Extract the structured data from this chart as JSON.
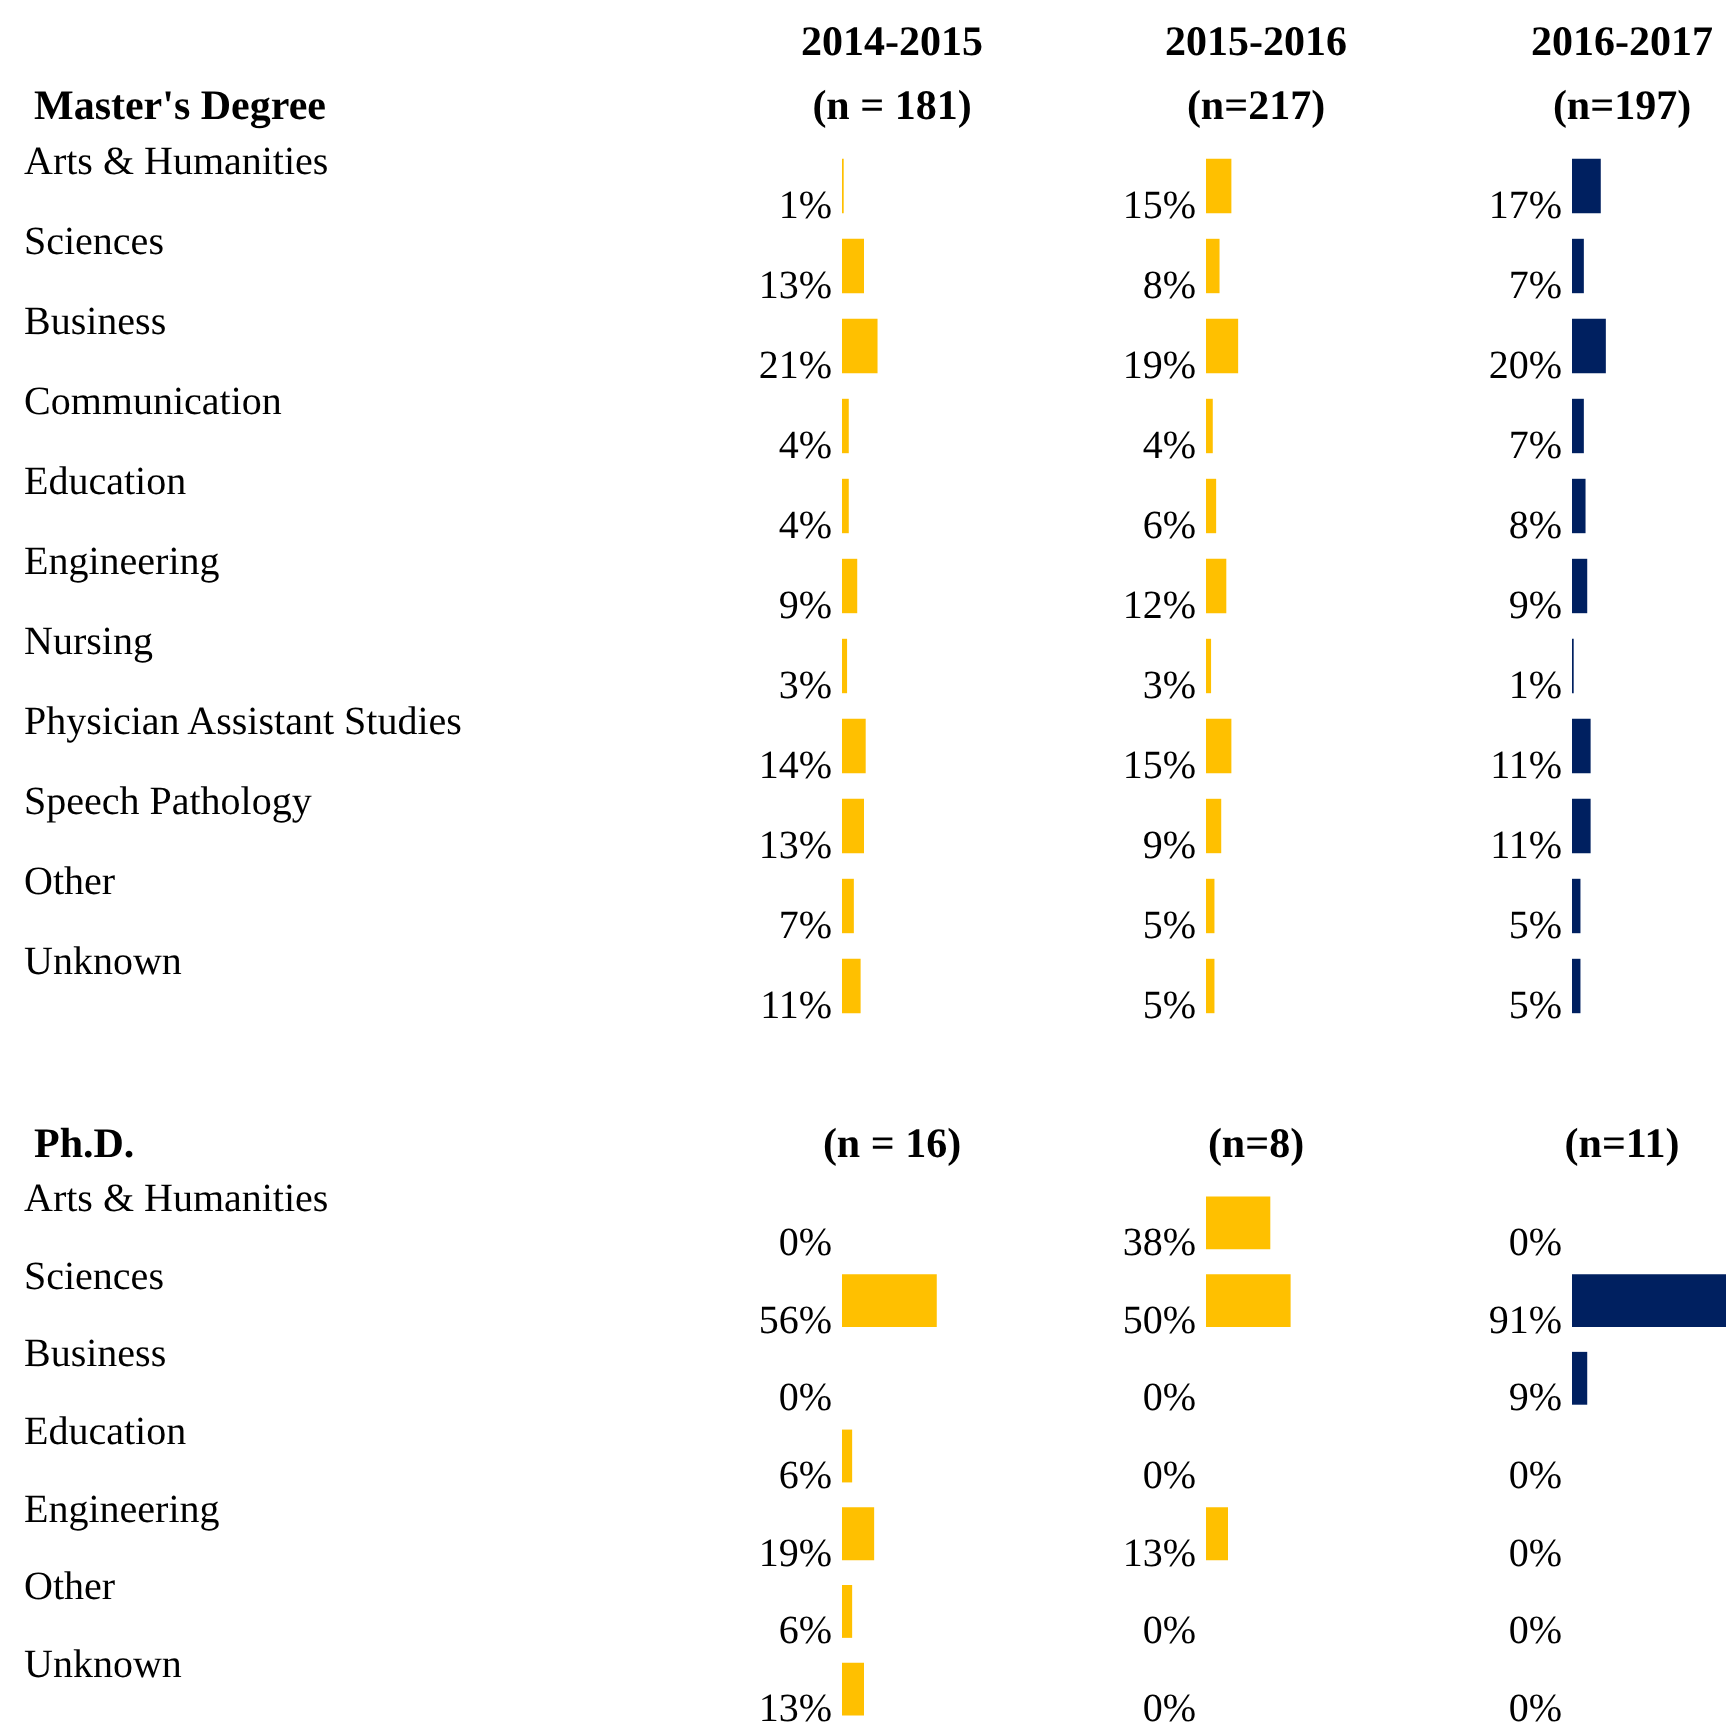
{
  "chart_data": [
    {
      "type": "bar",
      "orientation": "horizontal",
      "title": "2014-2015",
      "subtitle": "(n = 181)",
      "ylabel": "Master's Degree",
      "categories": [
        "Arts & Humanities",
        "Sciences",
        "Business",
        "Communication",
        "Education",
        "Engineering",
        "Nursing",
        "Physician Assistant Studies",
        "Speech Pathology",
        "Other",
        "Unknown"
      ],
      "values": [
        1,
        13,
        21,
        4,
        4,
        9,
        3,
        14,
        13,
        7,
        11
      ],
      "value_labels": [
        "1%",
        "13%",
        "21%",
        "4%",
        "4%",
        "9%",
        "3%",
        "14%",
        "13%",
        "7%",
        "11%"
      ],
      "color": "#ffc000",
      "tick_labels": "y"
    },
    {
      "type": "bar",
      "orientation": "horizontal",
      "title": "2015-2016",
      "subtitle": "(n=217)",
      "categories": [
        null,
        null,
        null,
        null,
        null,
        null,
        null,
        null,
        null,
        null,
        null
      ],
      "values": [
        15,
        8,
        19,
        4,
        6,
        12,
        3,
        15,
        9,
        5,
        5
      ],
      "value_labels": [
        "15%",
        "8%",
        "19%",
        "4%",
        "6%",
        "12%",
        "3%",
        "15%",
        "9%",
        "5%",
        "5%"
      ],
      "color": "#ffc000",
      "tick_labels": false
    },
    {
      "type": "bar",
      "orientation": "horizontal",
      "title": "2016-2017",
      "subtitle": "(n=197)",
      "categories": [
        null,
        null,
        null,
        null,
        null,
        null,
        null,
        null,
        null,
        null,
        null
      ],
      "values": [
        17,
        7,
        20,
        7,
        8,
        9,
        1,
        11,
        11,
        5,
        5
      ],
      "value_labels": [
        "17%",
        "7%",
        "20%",
        "7%",
        "8%",
        "9%",
        "1%",
        "11%",
        "11%",
        "5%",
        "5%"
      ],
      "color": "#002060",
      "tick_labels": false
    },
    {
      "type": "bar",
      "orientation": "horizontal",
      "subtitle": "(n = 16)",
      "ylabel": "Ph.D.",
      "categories": [
        "Arts & Humanities",
        "Sciences",
        "Business",
        "Education",
        "Engineering",
        "Other",
        "Unknown"
      ],
      "values": [
        0,
        56,
        0,
        6,
        19,
        6,
        13
      ],
      "value_labels": [
        "0%",
        "56%",
        "0%",
        "6%",
        "19%",
        "6%",
        "13%"
      ],
      "color": "#ffc000",
      "tick_labels": "y"
    },
    {
      "type": "bar",
      "orientation": "horizontal",
      "subtitle": "(n=8)",
      "categories": [
        null,
        null,
        null,
        null,
        null,
        null,
        null
      ],
      "values": [
        38,
        50,
        0,
        0,
        13,
        0,
        0
      ],
      "value_labels": [
        "38%",
        "50%",
        "0%",
        "0%",
        "13%",
        "0%",
        "0%"
      ],
      "color": "#ffc000",
      "tick_labels": false
    },
    {
      "type": "bar",
      "orientation": "horizontal",
      "subtitle": "(n=11)",
      "categories": [
        null,
        null,
        null,
        null,
        null,
        null,
        null
      ],
      "values": [
        0,
        91,
        9,
        0,
        0,
        0,
        0
      ],
      "value_labels": [
        "0%",
        "91%",
        "9%",
        "0%",
        "0%",
        "0%",
        "0%"
      ],
      "color": "#002060",
      "tick_labels": false
    }
  ]
}
